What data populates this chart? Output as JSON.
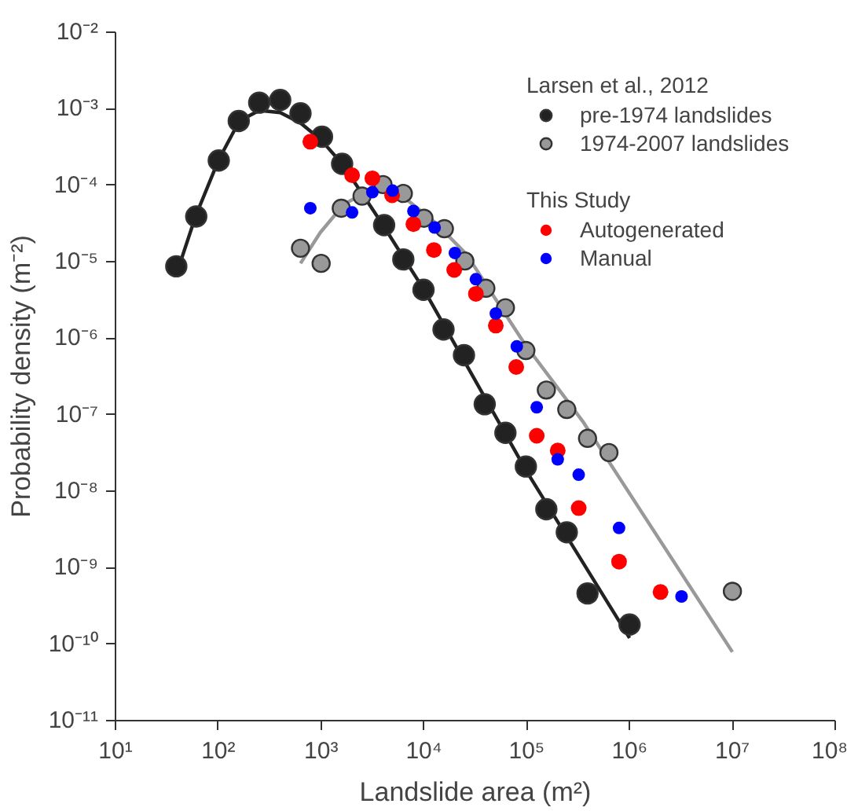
{
  "chart_data": {
    "type": "scatter",
    "xlabel": "Landslide area (m²)",
    "ylabel": "Probability density (m⁻²)",
    "log": "xy",
    "grid": false,
    "legend": "top right",
    "marker": "circle",
    "legend_title": "Larsen et al., 2012",
    "annotations": [
      "This Study"
    ],
    "xlim": [
      10,
      100000000
    ],
    "ylim": [
      1e-11,
      0.01
    ],
    "xticks": [
      {
        "value": 10,
        "label": "10¹"
      },
      {
        "value": 100,
        "label": "10²"
      },
      {
        "value": 1000,
        "label": "10³"
      },
      {
        "value": 10000,
        "label": "10⁴"
      },
      {
        "value": 100000,
        "label": "10⁵"
      },
      {
        "value": 1000000,
        "label": "10⁶"
      },
      {
        "value": 10000000,
        "label": "10⁷"
      },
      {
        "value": 100000000,
        "label": "10⁸"
      }
    ],
    "yticks": [
      {
        "value": 1e-11,
        "label": "10⁻¹¹"
      },
      {
        "value": 1e-10,
        "label": "10⁻¹⁰"
      },
      {
        "value": 1e-09,
        "label": "10⁻⁹"
      },
      {
        "value": 1e-08,
        "label": "10⁻⁸"
      },
      {
        "value": 1e-07,
        "label": "10⁻⁷"
      },
      {
        "value": 1e-06,
        "label": "10⁻⁶"
      },
      {
        "value": 1e-05,
        "label": "10⁻⁵"
      },
      {
        "value": 0.0001,
        "label": "10⁻⁴"
      },
      {
        "value": 0.001,
        "label": "10⁻³"
      },
      {
        "value": 0.01,
        "label": "10⁻²"
      }
    ],
    "series": [
      {
        "type": "line",
        "marker": "none",
        "color": "#222222",
        "x": [
          40,
          60,
          100,
          160,
          250,
          400,
          630,
          1000,
          1600,
          2500,
          4000,
          10000,
          100000,
          1000000
        ],
        "values": [
          7.5e-06,
          3.9e-05,
          0.00021,
          0.00069,
          0.00095,
          0.00089,
          0.00065,
          0.00039,
          0.00019,
          7.8e-05,
          3e-05,
          4.3e-06,
          1.8e-08,
          1.2e-10
        ]
      },
      {
        "type": "line",
        "marker": "none",
        "color": "#999999",
        "x": [
          630,
          980,
          1660,
          2500,
          4100,
          6900,
          13400,
          26000,
          95000,
          350000,
          10000000
        ],
        "values": [
          9.5e-06,
          2.4e-05,
          5.6e-05,
          7.6e-05,
          8.5e-05,
          6.4e-05,
          3.1e-05,
          1.24e-05,
          8.5e-07,
          8.2e-08,
          7.9e-11
        ]
      },
      {
        "name": "pre-1974 landslides",
        "color": "#222222",
        "x": [
          39,
          61,
          101,
          158,
          250,
          400,
          630,
          1020,
          1600,
          4100,
          6300,
          9900,
          15500,
          24500,
          39000,
          62000,
          98000,
          155000,
          245000,
          390000,
          1000000
        ],
        "values": [
          8.7e-06,
          3.9e-05,
          0.00021,
          0.00069,
          0.0012,
          0.0013,
          0.00087,
          0.00043,
          0.00019,
          3e-05,
          1.07e-05,
          4.3e-06,
          1.3e-06,
          6e-07,
          1.37e-07,
          5.8e-08,
          2.1e-08,
          5.8e-09,
          2.9e-09,
          4.6e-10,
          1.8e-10
        ]
      },
      {
        "name": "1974-2007 landslides",
        "color": "#999999",
        "x": [
          630,
          1000,
          1570,
          2500,
          4000,
          6300,
          10000,
          15800,
          25000,
          40000,
          62000,
          98000,
          155000,
          245000,
          390000,
          630000,
          10000000
        ],
        "values": [
          1.5e-05,
          9.5e-06,
          5e-05,
          7.2e-05,
          0.000102,
          7.8e-05,
          3.7e-05,
          2.7e-05,
          1.02e-05,
          4.5e-06,
          2.5e-06,
          6.9e-07,
          2.1e-07,
          1.17e-07,
          4.9e-08,
          3.2e-08,
          4.9e-10
        ]
      },
      {
        "name": "Autogenerated",
        "color": "#ff0000",
        "x": [
          785,
          2000,
          3150,
          4900,
          7900,
          12500,
          19700,
          32000,
          50000,
          79000,
          125000,
          200000,
          320000,
          790000,
          2000000
        ],
        "values": [
          0.00037,
          0.000135,
          0.000123,
          7.4e-05,
          3.1e-05,
          1.42e-05,
          7.8e-06,
          3.8e-06,
          1.46e-06,
          4.2e-07,
          5.3e-08,
          3.4e-08,
          6e-09,
          1.2e-09,
          4.8e-10
        ]
      },
      {
        "name": "Manual",
        "color": "#0000ff",
        "x": [
          785,
          2000,
          3150,
          4950,
          7900,
          12700,
          20000,
          32000,
          50000,
          80000,
          125000,
          200000,
          320000,
          790000,
          3200000
        ],
        "values": [
          5e-05,
          4.4e-05,
          8.1e-05,
          8.5e-05,
          4.6e-05,
          2.8e-05,
          1.3e-05,
          5.9e-06,
          2.1e-06,
          7.8e-07,
          1.25e-07,
          2.6e-08,
          1.64e-08,
          3.3e-09,
          4.2e-10
        ]
      }
    ]
  }
}
